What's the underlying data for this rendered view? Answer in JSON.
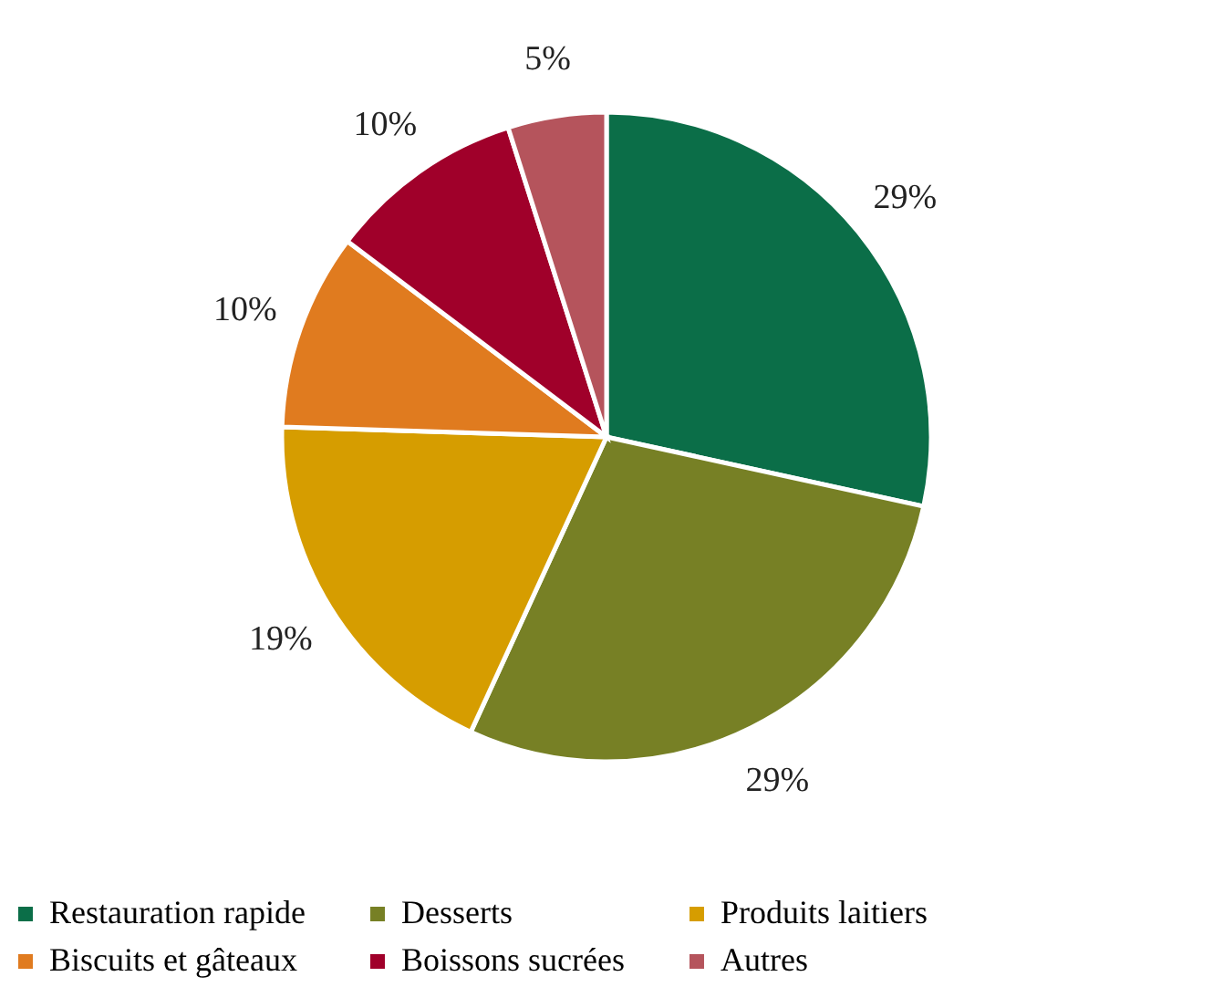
{
  "chart_data": {
    "type": "pie",
    "categories": [
      "Restauration rapide",
      "Desserts",
      "Produits laitiers",
      "Biscuits et gâteaux",
      "Boissons sucrées",
      "Autres"
    ],
    "values": [
      29,
      29,
      19,
      10,
      10,
      5
    ],
    "value_labels": [
      "29%",
      "29%",
      "19%",
      "10%",
      "10%",
      "5%"
    ],
    "colors": [
      "#0b6e48",
      "#778025",
      "#d69d00",
      "#e07b1f",
      "#a0002a",
      "#b5545c"
    ],
    "legend": "bottom"
  }
}
